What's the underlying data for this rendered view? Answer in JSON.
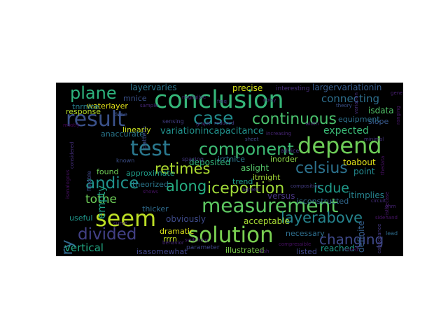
{
  "wordcloud": {
    "words": [
      {
        "id": "conclusion",
        "text": "conclusion",
        "color": "#35b779"
      },
      {
        "id": "result",
        "text": "result",
        "color": "#3b528b"
      },
      {
        "id": "test",
        "text": "test",
        "color": "#2a788e"
      },
      {
        "id": "depend",
        "text": "depend",
        "color": "#6ece58"
      },
      {
        "id": "measurement",
        "text": "measurement",
        "color": "#5ec962"
      },
      {
        "id": "solution",
        "text": "solution",
        "color": "#7ad151"
      },
      {
        "id": "seem",
        "text": "seem",
        "color": "#bddf26"
      },
      {
        "id": "plane",
        "text": "plane",
        "color": "#2db27d"
      },
      {
        "id": "case",
        "text": "case",
        "color": "#228c8d"
      },
      {
        "id": "continuous",
        "text": "continuous",
        "color": "#4ac16d"
      },
      {
        "id": "component",
        "text": "component",
        "color": "#3dbc74"
      },
      {
        "id": "celsius",
        "text": "celsius",
        "color": "#2c728e"
      },
      {
        "id": "retimes",
        "text": "retimes",
        "color": "#addc30"
      },
      {
        "id": "iceportion",
        "text": "iceportion",
        "color": "#a0da39"
      },
      {
        "id": "imaginary",
        "text": "imaginary",
        "color": "#31688e"
      },
      {
        "id": "layerabove",
        "text": "layerabove",
        "color": "#25848e"
      },
      {
        "id": "andice",
        "text": "andice",
        "color": "#20928c"
      },
      {
        "id": "along",
        "text": "along",
        "color": "#26ad81"
      },
      {
        "id": "divided",
        "text": "divided",
        "color": "#424086"
      },
      {
        "id": "changing",
        "text": "changing",
        "color": "#3e4989"
      },
      {
        "id": "isdue",
        "text": "isdue",
        "color": "#1f9a8a"
      },
      {
        "id": "tothe",
        "text": "tothe",
        "color": "#6ece58"
      },
      {
        "id": "variationincapacitance",
        "text": "variationincapacitance",
        "color": "#21918c"
      },
      {
        "id": "expected",
        "text": "expected",
        "color": "#3aba76"
      },
      {
        "id": "connecting",
        "text": "connecting",
        "color": "#2e6f8e"
      },
      {
        "id": "empty",
        "text": "empty",
        "color": "#1fa187"
      },
      {
        "id": "vertical",
        "text": "vertical",
        "color": "#22a884"
      },
      {
        "id": "precise",
        "text": "precise",
        "color": "#d8e219"
      },
      {
        "id": "layervaries",
        "text": "layervaries",
        "color": "#2b758e"
      },
      {
        "id": "largervariationin",
        "text": "largervariationin",
        "color": "#365c8d"
      },
      {
        "id": "isdata",
        "text": "isdata",
        "color": "#52c569"
      },
      {
        "id": "slope",
        "text": "slope",
        "color": "#38598c"
      },
      {
        "id": "waterlayer",
        "text": "waterlayer",
        "color": "#e5e419"
      },
      {
        "id": "tnrnice",
        "text": "tnrnice",
        "color": "#277f8e"
      },
      {
        "id": "response",
        "text": "response",
        "color": "#b5de2b"
      },
      {
        "id": "linearly",
        "text": "linearly",
        "color": "#c8e020"
      },
      {
        "id": "anaccurate",
        "text": "anaccurate",
        "color": "#2a788e"
      },
      {
        "id": "deposited",
        "text": "deposited",
        "color": "#31b57b"
      },
      {
        "id": "aslight",
        "text": "aslight",
        "color": "#54c568"
      },
      {
        "id": "inorder",
        "text": "inorder",
        "color": "#8bd646"
      },
      {
        "id": "toabout",
        "text": "toabout",
        "color": "#e5e419"
      },
      {
        "id": "point",
        "text": "point",
        "color": "#23898e"
      },
      {
        "id": "found",
        "text": "found",
        "color": "#6ece58"
      },
      {
        "id": "approximate",
        "text": "approximate",
        "color": "#1f9e89"
      },
      {
        "id": "theorized",
        "text": "theorized",
        "color": "#2a788e"
      },
      {
        "id": "trend",
        "text": "trend",
        "color": "#1fa088"
      },
      {
        "id": "itmight",
        "text": "itmight",
        "color": "#a5db36"
      },
      {
        "id": "versus",
        "text": "versus",
        "color": "#46337e"
      },
      {
        "id": "isconstructed",
        "text": "isconstructed",
        "color": "#31688e"
      },
      {
        "id": "itimplies",
        "text": "itimplies",
        "color": "#26828e"
      },
      {
        "id": "thicker",
        "text": "thicker",
        "color": "#2f6c8e"
      },
      {
        "id": "useful",
        "text": "useful",
        "color": "#1f968b"
      },
      {
        "id": "obviously",
        "text": "obviously",
        "color": "#3e4a89"
      },
      {
        "id": "acceptable",
        "text": "acceptable",
        "color": "#a8db34"
      },
      {
        "id": "definite",
        "text": "definite",
        "color": "#355f8d"
      },
      {
        "id": "dramatic",
        "text": "dramatic",
        "color": "#dde318"
      },
      {
        "id": "rrrn",
        "text": "rrrn",
        "color": "#c2df23"
      },
      {
        "id": "necessary",
        "text": "necessary",
        "color": "#2e6e8e"
      },
      {
        "id": "isasomewhat",
        "text": "isasomewhat",
        "color": "#414487"
      },
      {
        "id": "illustrated",
        "text": "illustrated",
        "color": "#7fd34e"
      },
      {
        "id": "listed",
        "text": "listed",
        "color": "#404688"
      },
      {
        "id": "reached",
        "text": "reached",
        "color": "#1e9c89"
      },
      {
        "id": "equipment",
        "text": "equipment",
        "color": "#2d708e"
      },
      {
        "id": "irrtnice",
        "text": "irrtnice",
        "color": "#2a768e"
      },
      {
        "id": "mnice",
        "text": "mnice",
        "color": "#3b518b"
      },
      {
        "id": "parameter",
        "text": "parameter",
        "color": "#3f4788"
      },
      {
        "id": "interesting",
        "text": "interesting",
        "color": "#472d7b"
      },
      {
        "id": "pattern",
        "text": "pattern",
        "color": "#3d4d8a"
      },
      {
        "id": "done",
        "text": "done",
        "color": "#3b518b"
      },
      {
        "id": "sensing",
        "text": "sensing",
        "color": "#433e85"
      },
      {
        "id": "spacing",
        "text": "spacing",
        "color": "#443983"
      },
      {
        "id": "flexible",
        "text": "flexible",
        "color": "#3f4889"
      },
      {
        "id": "known",
        "text": "known",
        "color": "#3c4f8a"
      },
      {
        "id": "advice",
        "text": "advice",
        "color": "#453882"
      },
      {
        "id": "composition",
        "text": "composition",
        "color": "#433d84"
      },
      {
        "id": "lead",
        "text": "lead",
        "color": "#2e6d8e"
      },
      {
        "id": "variation",
        "text": "variation",
        "color": "#472f7d"
      },
      {
        "id": "theory",
        "text": "theory",
        "color": "#3b528b"
      },
      {
        "id": "capacitance",
        "text": "capacitance",
        "color": "#443a83"
      },
      {
        "id": "isanalogous",
        "text": "isanalogous",
        "color": "#471063"
      },
      {
        "id": "considered",
        "text": "considered",
        "color": "#46307e"
      },
      {
        "id": "increasing",
        "text": "increasing",
        "color": "#482677"
      },
      {
        "id": "isthecase",
        "text": "isthecase",
        "color": "#481a6c"
      },
      {
        "id": "reduced",
        "text": "reduced",
        "color": "#443983"
      },
      {
        "id": "negligible",
        "text": "negligible",
        "color": "#481f70"
      },
      {
        "id": "sheet",
        "text": "sheet",
        "color": "#3f4788"
      },
      {
        "id": "curve",
        "text": "curve",
        "color": "#482475"
      },
      {
        "id": "shows",
        "text": "shows",
        "color": "#471365"
      },
      {
        "id": "agrees",
        "text": "agrees",
        "color": "#46327e"
      },
      {
        "id": "graph",
        "text": "graph",
        "color": "#472c7a"
      },
      {
        "id": "width",
        "text": "width",
        "color": "#481b6d"
      },
      {
        "id": "minimal",
        "text": "minimal",
        "color": "#45347f"
      },
      {
        "id": "sample",
        "text": "sample",
        "color": "#482878"
      },
      {
        "id": "thedata",
        "text": "thedata",
        "color": "#471164"
      },
      {
        "id": "mostly",
        "text": "mostly",
        "color": "#440154"
      },
      {
        "id": "freq",
        "text": "freq",
        "color": "#46327e"
      },
      {
        "id": "noisy",
        "text": "noisy",
        "color": "#482576"
      },
      {
        "id": "ranging",
        "text": "ranging",
        "color": "#481769"
      },
      {
        "id": "generated",
        "text": "generated",
        "color": "#482071"
      },
      {
        "id": "circuit",
        "text": "circuit",
        "color": "#46307e"
      },
      {
        "id": "behavior",
        "text": "behavior",
        "color": "#482979"
      },
      {
        "id": "compressible",
        "text": "compressible",
        "color": "#471063"
      },
      {
        "id": "sidehand",
        "text": "sidehand",
        "color": "#481467"
      },
      {
        "id": "switching",
        "text": "switching",
        "color": "#482173"
      },
      {
        "id": "mixed",
        "text": "mixed",
        "color": "#470d60"
      },
      {
        "id": "ohm",
        "text": "ohm",
        "color": "#482576"
      },
      {
        "id": "dish",
        "text": "dish",
        "color": "#481c6e"
      }
    ]
  }
}
